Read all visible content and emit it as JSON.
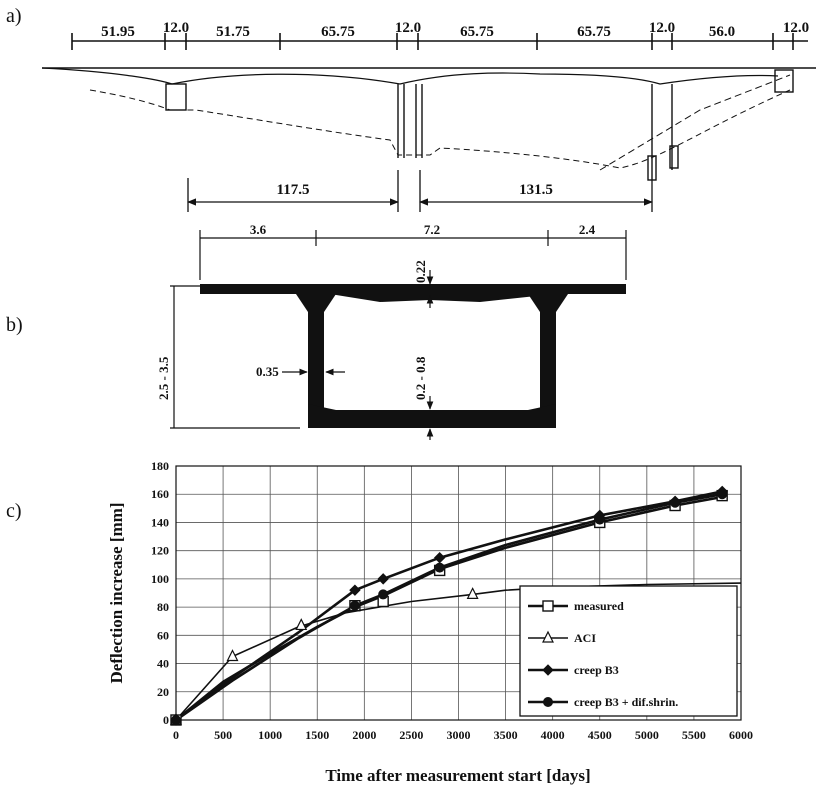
{
  "panel_labels": [
    "a)",
    "b)",
    "c)"
  ],
  "elevation": {
    "top_dims": [
      "51.95",
      "12.0",
      "51.75",
      "65.75",
      "12.0",
      "65.75",
      "65.75",
      "12.0",
      "56.0",
      "12.0"
    ],
    "bottom_dims": [
      "117.5",
      "131.5"
    ]
  },
  "section": {
    "top_dims": [
      "3.6",
      "7.2",
      "2.4"
    ],
    "flange_thickness": "0.22",
    "height": "2.5 - 3.5",
    "web_thickness": "0.35",
    "bottom_slab": "0.2 - 0.8"
  },
  "chart_data": {
    "type": "line",
    "xlabel": "Time after measurement start [days]",
    "ylabel": "Deflection increase [mm]",
    "xlim": [
      0,
      6000
    ],
    "ylim": [
      0,
      180
    ],
    "xticks": [
      0,
      500,
      1000,
      1500,
      2000,
      2500,
      3000,
      3500,
      4000,
      4500,
      5000,
      5500,
      6000
    ],
    "yticks": [
      0,
      20,
      40,
      60,
      80,
      100,
      120,
      140,
      160,
      180
    ],
    "grid": true,
    "legend": "lower-right",
    "series": [
      {
        "name": "measured",
        "marker": "square",
        "curve": [
          [
            0,
            0
          ],
          [
            500,
            27
          ],
          [
            1000,
            47
          ],
          [
            1500,
            66
          ],
          [
            1900,
            80
          ],
          [
            2200,
            88
          ],
          [
            2800,
            107
          ],
          [
            3500,
            122
          ],
          [
            4500,
            140
          ],
          [
            5300,
            152
          ],
          [
            5800,
            158
          ]
        ],
        "points": [
          [
            0,
            0
          ],
          [
            1900,
            81
          ],
          [
            2200,
            84
          ],
          [
            2800,
            106
          ],
          [
            4500,
            140
          ],
          [
            5300,
            152
          ],
          [
            5800,
            159
          ]
        ]
      },
      {
        "name": "ACI",
        "marker": "triangle",
        "curve": [
          [
            0,
            0
          ],
          [
            600,
            45
          ],
          [
            1300,
            66
          ],
          [
            1800,
            76
          ],
          [
            2500,
            84
          ],
          [
            3150,
            89
          ],
          [
            3500,
            92
          ],
          [
            4000,
            94
          ],
          [
            5000,
            96
          ],
          [
            6000,
            97
          ]
        ],
        "points": [
          [
            0,
            0
          ],
          [
            600,
            45
          ],
          [
            1330,
            67
          ],
          [
            3150,
            89
          ]
        ]
      },
      {
        "name": "creep B3",
        "marker": "diamond",
        "curve": [
          [
            0,
            0
          ],
          [
            600,
            30
          ],
          [
            1300,
            62
          ],
          [
            1900,
            92
          ],
          [
            2200,
            100
          ],
          [
            2800,
            115
          ],
          [
            3500,
            128
          ],
          [
            4500,
            145
          ],
          [
            5300,
            155
          ],
          [
            5800,
            162
          ]
        ],
        "points": [
          [
            0,
            0
          ],
          [
            1900,
            92
          ],
          [
            2200,
            100
          ],
          [
            2800,
            115
          ],
          [
            4500,
            145
          ],
          [
            5300,
            155
          ],
          [
            5800,
            162
          ]
        ]
      },
      {
        "name": "creep B3 + dif.shrin.",
        "marker": "circle",
        "curve": [
          [
            0,
            0
          ],
          [
            600,
            28
          ],
          [
            1300,
            58
          ],
          [
            1900,
            81
          ],
          [
            2200,
            89
          ],
          [
            2800,
            108
          ],
          [
            3500,
            124
          ],
          [
            4500,
            142
          ],
          [
            5300,
            154
          ],
          [
            5800,
            160
          ]
        ],
        "points": [
          [
            0,
            0
          ],
          [
            1900,
            81
          ],
          [
            2200,
            89
          ],
          [
            2800,
            108
          ],
          [
            4500,
            142
          ],
          [
            5300,
            154
          ],
          [
            5800,
            160
          ]
        ]
      }
    ]
  }
}
